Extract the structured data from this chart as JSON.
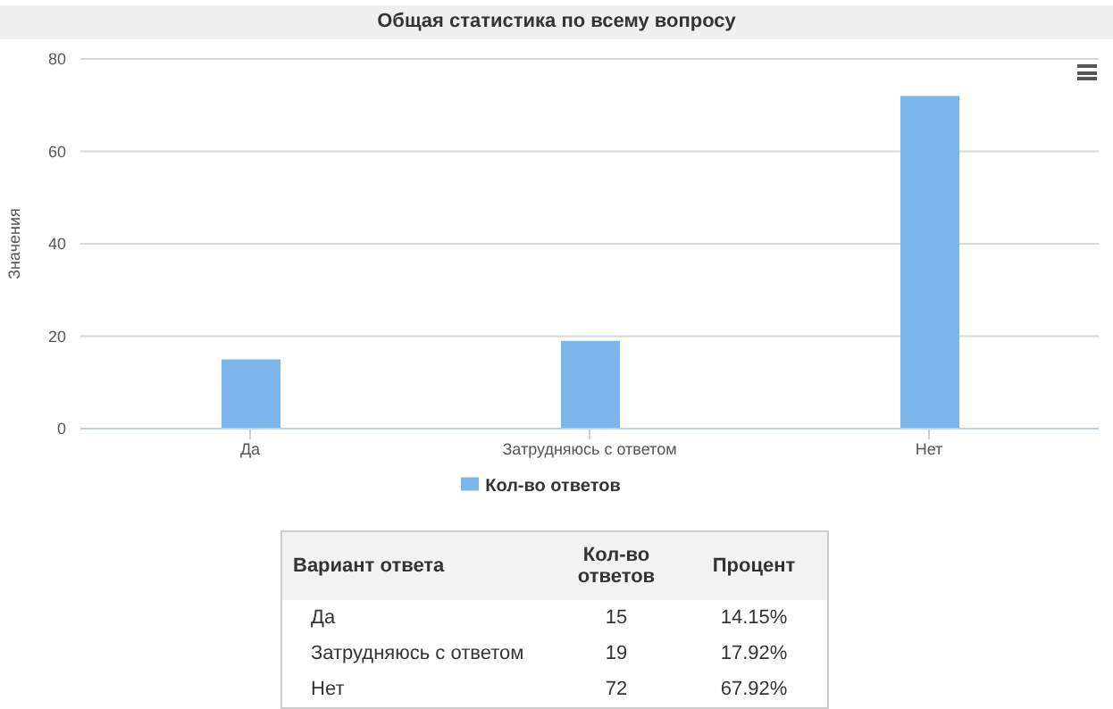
{
  "chart_data": {
    "type": "bar",
    "title": "Общая статистика по всему вопросу",
    "ylabel": "Значения",
    "categories": [
      "Да",
      "Затрудняюсь с ответом",
      "Нет"
    ],
    "series": [
      {
        "name": "Кол-во ответов",
        "color": "#7cb5ec",
        "values": [
          15,
          19,
          72
        ]
      }
    ],
    "ylim": [
      0,
      80
    ],
    "yticks": [
      0,
      20,
      40,
      60,
      80
    ],
    "grid": "y",
    "legend": "bottom",
    "annotations": [
      "Вариант ответа",
      "Кол-во ответов",
      "Процент",
      "15",
      "14.15%",
      "19",
      "17.92%",
      "72",
      "67.92%"
    ]
  }
}
